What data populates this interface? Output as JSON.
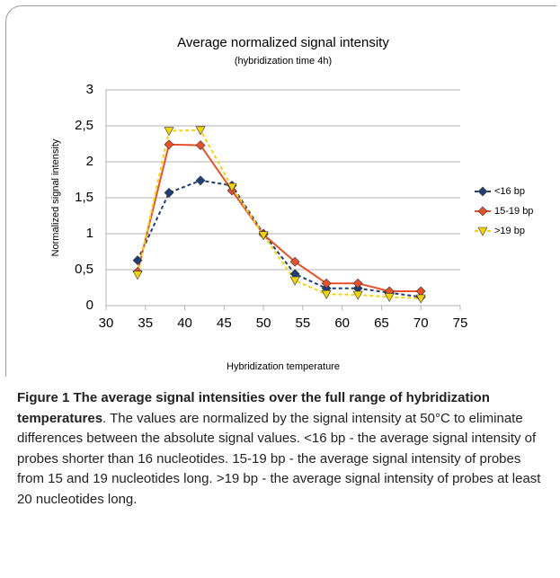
{
  "chart_data": {
    "type": "line",
    "title": "Average normalized signal intensity",
    "subtitle": "(hybridization time 4h)",
    "x_label": "Hybridization temperature",
    "y_label": "Normalized signal intensity",
    "x": [
      34,
      38,
      42,
      46,
      50,
      54,
      58,
      62,
      66,
      70
    ],
    "series": [
      {
        "name": "<16 bp",
        "color": "#1f3f73",
        "dashed": true,
        "marker": "diamond",
        "values": [
          0.63,
          1.57,
          1.74,
          1.67,
          1.0,
          0.44,
          0.24,
          0.24,
          0.18,
          0.12
        ]
      },
      {
        "name": "15-19 bp",
        "color": "#e8502a",
        "dashed": false,
        "marker": "diamond",
        "values": [
          0.47,
          2.24,
          2.23,
          1.6,
          0.99,
          0.61,
          0.31,
          0.31,
          0.2,
          0.2
        ]
      },
      {
        "name": ">19 bp",
        "color": "#f2d40c",
        "dashed": true,
        "marker": "triangle",
        "values": [
          0.43,
          2.43,
          2.44,
          1.65,
          0.98,
          0.35,
          0.16,
          0.15,
          0.12,
          0.1
        ]
      }
    ],
    "xlim": [
      30,
      75
    ],
    "xticks": [
      30,
      35,
      40,
      45,
      50,
      55,
      60,
      65,
      70,
      75
    ],
    "ylim": [
      0,
      3
    ],
    "yticks": [
      0,
      {
        "value": 0.5,
        "label": "0,5"
      },
      1,
      {
        "value": 1.5,
        "label": "1,5"
      },
      2,
      {
        "value": 2.5,
        "label": "2,5"
      },
      3
    ],
    "grid": true,
    "legend": "right"
  },
  "caption": {
    "title": "Figure 1 The average signal intensities over the full range of hybridization temperatures",
    "text": ". The values are normalized by the signal intensity at 50°C to eliminate differences between the absolute signal values. <16 bp - the average signal intensity of probes shorter than 16 nucleotides. 15-19 bp - the average signal intensity of probes from 15 and 19 nucleotides long. >19 bp - the average signal intensity of probes at least 20 nucleotides long."
  }
}
